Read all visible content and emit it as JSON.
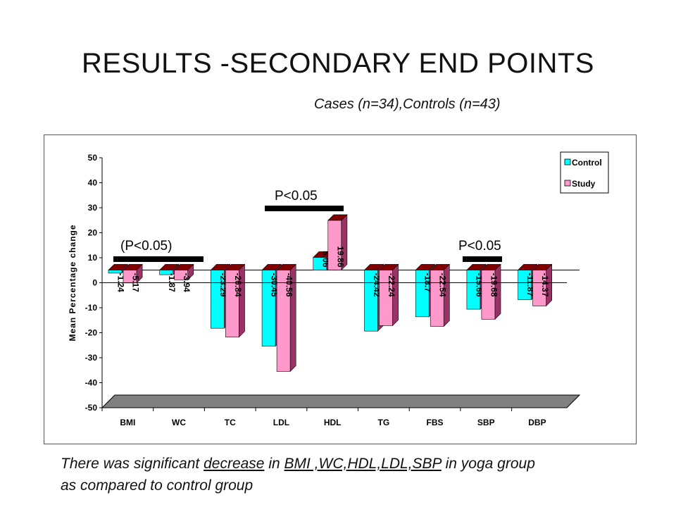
{
  "slide": {
    "title": "RESULTS -SECONDARY END POINTS",
    "subtitle": "Cases (n=34),Controls (n=43)",
    "footnote": {
      "part1": "There was significant ",
      "decrease": "decrease",
      "part2": " in ",
      "vars": "BMI ,WC,HDL,LDL,SBP",
      "part3": " in yoga group",
      "line2": " as compared to control group"
    }
  },
  "colors": {
    "control": "#00FFFF",
    "study": "#FF99CC",
    "floor": "#808080",
    "bar_side": "#993366",
    "bar_top": "#800000"
  },
  "chart_data": {
    "type": "bar",
    "title": "",
    "xlabel": "",
    "ylabel": "Mean Percentage change",
    "ylim": [
      -50,
      50
    ],
    "yticks": [
      50,
      40,
      30,
      20,
      10,
      0,
      -10,
      -20,
      -30,
      -40,
      -50
    ],
    "categories": [
      "BMI",
      "WC",
      "TC",
      "LDL",
      "HDL",
      "TG",
      "FBS",
      "SBP",
      "DBP"
    ],
    "series": [
      {
        "name": "Control",
        "values": [
          -1.24,
          -1.87,
          -23.29,
          -30.45,
          5.06,
          -24.42,
          -18.7,
          -15.66,
          -11.87
        ]
      },
      {
        "name": "Study",
        "values": [
          -5.17,
          -3.94,
          -26.84,
          -40.56,
          19.86,
          -22.24,
          -22.54,
          -19.68,
          -14.37
        ]
      }
    ],
    "legend": {
      "position": "top-right",
      "entries": [
        "Control",
        "Study"
      ]
    },
    "annotations": [
      {
        "text": "(P<0.05)",
        "from": "BMI",
        "to": "WC"
      },
      {
        "text": "P<0.05",
        "from": "LDL",
        "to": "HDL"
      },
      {
        "text": "P<0.05",
        "from": "SBP",
        "to": "SBP"
      }
    ]
  }
}
